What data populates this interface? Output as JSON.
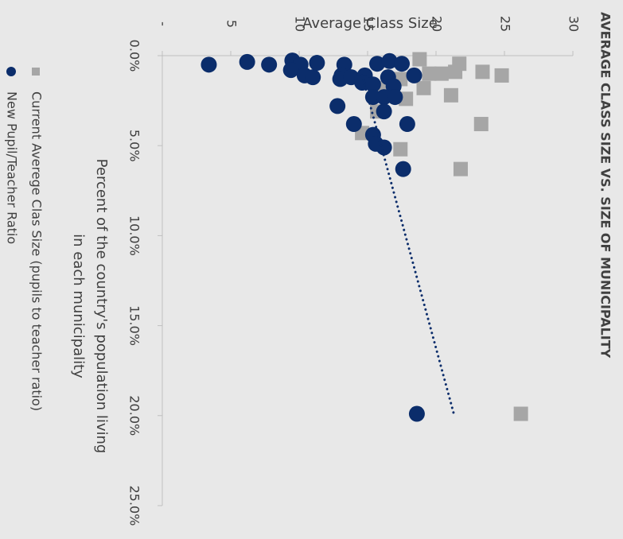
{
  "chart_data": {
    "type": "scatter",
    "title": "AVERAGE CLASS SIZE VS. SIZE OF MUNICIPALITY",
    "x_label": [
      "Percent of the country's population living",
      "in each municipality"
    ],
    "y_label": "Average Class Size",
    "xlim": [
      0,
      25
    ],
    "xticks": [
      {
        "value": 0,
        "label": "0.0%"
      },
      {
        "value": 5,
        "label": "5.0%"
      },
      {
        "value": 10,
        "label": "10.0%"
      },
      {
        "value": 15,
        "label": "15.0%"
      },
      {
        "value": 20,
        "label": "20.0%"
      },
      {
        "value": 25,
        "label": "25.0%"
      }
    ],
    "ylim": [
      0,
      30
    ],
    "yticks": [
      {
        "value": 0,
        "label": "-"
      },
      5,
      10,
      15,
      20,
      25,
      30
    ],
    "series": [
      {
        "name": "Current Averege Clas Size (pupils to teacher ratio)",
        "color": "#a6a6a6",
        "marker": "square",
        "x": [
          0.2,
          0.45,
          1.0,
          1.0,
          0.9,
          0.9,
          1.1,
          1.8,
          2.2,
          2.4,
          3.8,
          5.2,
          6.3,
          19.9,
          3.1,
          4.3,
          1.3,
          1.8
        ],
        "values": [
          18.8,
          21.7,
          19.5,
          20.4,
          21.4,
          23.4,
          24.8,
          19.1,
          21.1,
          17.8,
          23.3,
          17.4,
          21.8,
          26.2,
          15.7,
          14.6,
          17.4,
          16.3
        ]
      },
      {
        "name": "New Pupil/Teacher Ratio",
        "color": "#0b2d6b",
        "marker": "circle",
        "x": [
          0.5,
          0.35,
          0.5,
          0.27,
          0.5,
          0.8,
          1.1,
          1.2,
          0.4,
          0.5,
          1.1,
          1.3,
          1.2,
          1.1,
          1.5,
          1.6,
          0.45,
          0.3,
          0.45,
          1.1,
          1.2,
          1.7,
          2.3,
          2.3,
          2.3,
          2.8,
          3.1,
          3.8,
          3.8,
          4.4,
          4.9,
          5.1,
          6.3,
          19.9
        ],
        "values": [
          3.4,
          6.2,
          7.8,
          9.5,
          10.1,
          9.4,
          10.4,
          11.0,
          11.3,
          13.3,
          13.1,
          13.0,
          13.8,
          14.8,
          14.6,
          15.4,
          15.7,
          16.6,
          17.5,
          18.4,
          16.5,
          16.9,
          15.4,
          16.2,
          17.0,
          12.8,
          16.2,
          14.0,
          17.9,
          15.4,
          15.6,
          16.2,
          17.6,
          18.6
        ],
        "trendline": {
          "x": [
            1.1,
            19.9
          ],
          "values": [
            14.6,
            21.3
          ]
        }
      }
    ]
  }
}
